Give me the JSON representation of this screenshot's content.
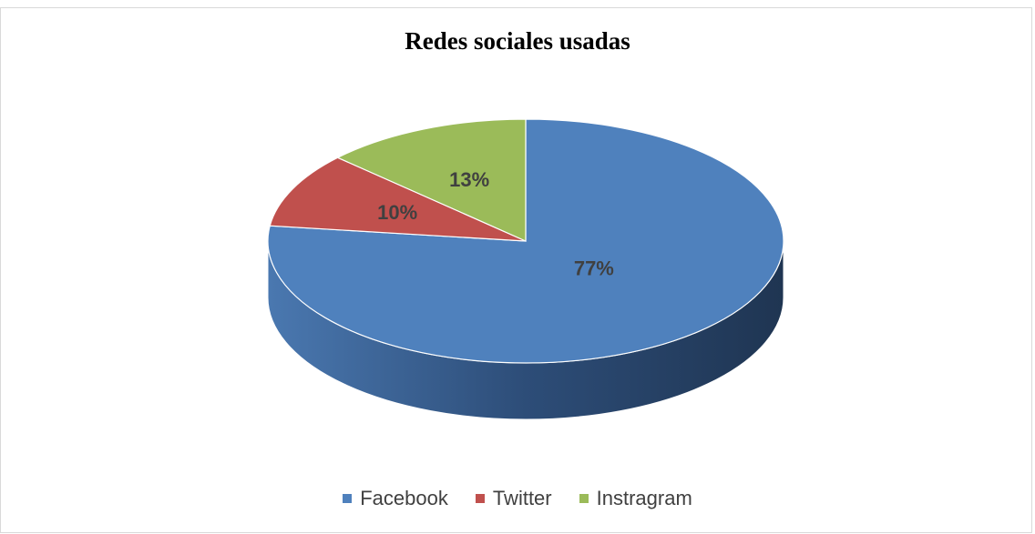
{
  "chart_data": {
    "type": "pie",
    "title": "Redes sociales usadas",
    "categories": [
      "Facebook",
      "Twitter",
      "Instragram"
    ],
    "values": [
      77,
      10,
      13
    ],
    "labels": [
      "77%",
      "10%",
      "13%"
    ],
    "colors": [
      "#4f81bd",
      "#c0504d",
      "#9bbb59"
    ],
    "legend_position": "bottom",
    "style": "3d"
  }
}
